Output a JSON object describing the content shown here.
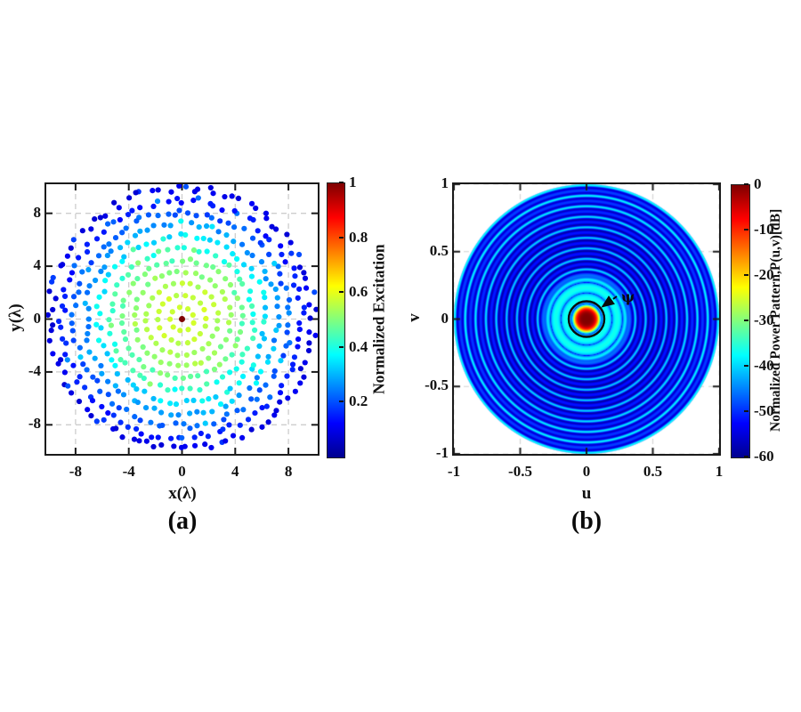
{
  "figure": {
    "panel_a": {
      "caption": "(a)",
      "xlabel": "x(λ)",
      "ylabel": "y(λ)",
      "colorbar_label": "Normalized Excitation"
    },
    "panel_b": {
      "caption": "(b)",
      "xlabel": "u",
      "ylabel": "v",
      "colorbar_label": "Normalized Power Pattern,P(u,v)[dB]",
      "annotation": "ψ"
    }
  },
  "colors": {
    "frame": "#1a1a1a",
    "grid": "#cdcdcd",
    "text": "#111111",
    "jet_stops": [
      {
        "c": "#00008f",
        "p": 0
      },
      {
        "c": "#0000ff",
        "p": 12.5
      },
      {
        "c": "#00ffff",
        "p": 37.5
      },
      {
        "c": "#ffff00",
        "p": 62.5
      },
      {
        "c": "#ff0000",
        "p": 87.5
      },
      {
        "c": "#7f0000",
        "p": 100
      }
    ]
  },
  "chart_data": [
    {
      "type": "scatter",
      "description": "Planar concentric-ring antenna array element layout; marker color encodes normalized excitation amplitude (jet colormap, 0-1). Center element excitation 1.0, taper decreasing to ~0.1 at the 10λ rim.",
      "xlabel": "x(λ)",
      "ylabel": "y(λ)",
      "xlim": [
        -10.2,
        10.2
      ],
      "ylim": [
        -10.2,
        10.2
      ],
      "x_ticks": [
        -8,
        -4,
        0,
        4,
        8
      ],
      "y_ticks": [
        8,
        4,
        0,
        -4,
        -8
      ],
      "grid": true,
      "colorbar": {
        "label": "Normalized Excitation",
        "range": [
          0,
          1
        ],
        "ticks": [
          1,
          0.8,
          0.6,
          0.4,
          0.2
        ],
        "colormap": "jet"
      },
      "rings": [
        {
          "radius": 0.0,
          "count": 1,
          "amplitude": 1.0
        },
        {
          "radius": 0.9,
          "count": 9,
          "amplitude": 0.58
        },
        {
          "radius": 1.8,
          "count": 18,
          "amplitude": 0.57
        },
        {
          "radius": 2.7,
          "count": 27,
          "amplitude": 0.55
        },
        {
          "radius": 3.6,
          "count": 36,
          "amplitude": 0.52
        },
        {
          "radius": 4.5,
          "count": 46,
          "amplitude": 0.48
        },
        {
          "radius": 5.4,
          "count": 55,
          "amplitude": 0.42
        },
        {
          "radius": 6.3,
          "count": 64,
          "amplitude": 0.35
        },
        {
          "radius": 7.2,
          "count": 73,
          "amplitude": 0.27
        },
        {
          "radius": 8.1,
          "count": 82,
          "amplitude": 0.21
        },
        {
          "radius": 9.0,
          "count": 91,
          "amplitude": 0.15
        },
        {
          "radius": 9.9,
          "count": 100,
          "amplitude": 0.1
        }
      ]
    },
    {
      "type": "heatmap",
      "description": "Normalized power pattern P(u,v) in dB over visible region u²+v²≤1 (jet colormap). 0 dB main beam at origin, first null ≈0.115, inner ~-37 dB sidelobe plateau to r≈0.30, outer ring sidelobes ~-39 dB peaks over ~-57 dB floor.",
      "xlabel": "u",
      "ylabel": "v",
      "xlim": [
        -1,
        1
      ],
      "ylim": [
        -1,
        1
      ],
      "ticks": [
        -1,
        -0.5,
        0,
        0.5,
        1
      ],
      "colorbar": {
        "label": "Normalized Power Pattern,P(u,v)[dB]",
        "range": [
          -60,
          0
        ],
        "ticks": [
          0,
          -10,
          -20,
          -30,
          -40,
          -50,
          -60
        ],
        "colormap": "jet"
      },
      "pattern": {
        "peak_db": 0,
        "main_lobe_edge": 0.075,
        "main_lobe_exp": 4,
        "first_null": 0.115,
        "null_spacing": 0.039,
        "inner_sll_db": -36.5,
        "inner_region_radius": 0.3,
        "outer_floor_db": -57,
        "outer_strong_peak_db": -39,
        "outer_weak_peak_db": -50,
        "floor_db": -60
      },
      "annotation": {
        "text": "ψ",
        "circle_center_uv": [
          0,
          0
        ],
        "circle_radius_u": 0.134
      }
    }
  ]
}
